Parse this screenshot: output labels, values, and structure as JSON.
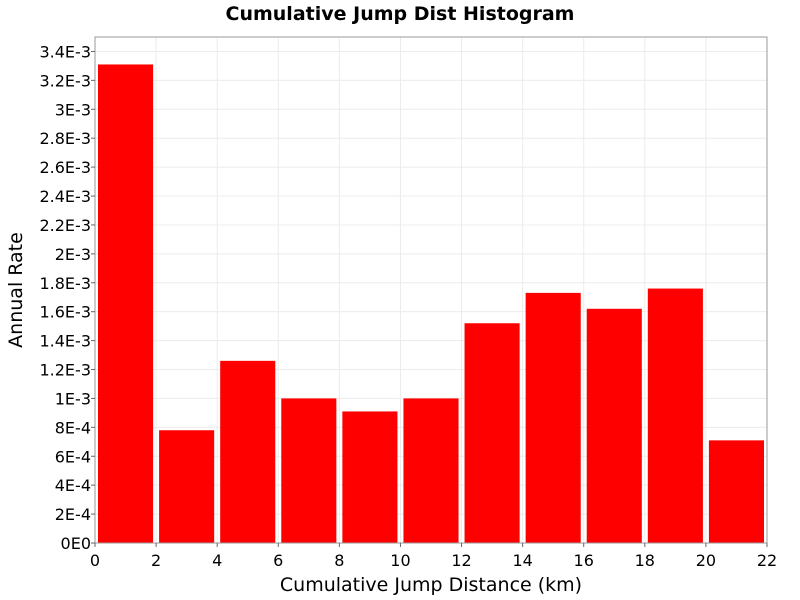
{
  "chart_data": {
    "type": "bar",
    "title": "Cumulative Jump Dist Histogram",
    "xlabel": "Cumulative Jump Distance (km)",
    "ylabel": "Annual Rate",
    "xlim": [
      0,
      22
    ],
    "ylim": [
      0,
      0.0035
    ],
    "x_ticks": [
      0,
      2,
      4,
      6,
      8,
      10,
      12,
      14,
      16,
      18,
      20,
      22
    ],
    "x_tick_labels": [
      "0",
      "2",
      "4",
      "6",
      "8",
      "10",
      "12",
      "14",
      "16",
      "18",
      "20",
      "22"
    ],
    "y_ticks": [
      0,
      0.0002,
      0.0004,
      0.0006,
      0.0008,
      0.001,
      0.0012,
      0.0014,
      0.0016,
      0.0018,
      0.002,
      0.0022,
      0.0024,
      0.0026,
      0.0028,
      0.003,
      0.0032,
      0.0034
    ],
    "y_tick_labels": [
      "0E0",
      "2E-4",
      "4E-4",
      "6E-4",
      "8E-4",
      "1E-3",
      "1.2E-3",
      "1.4E-3",
      "1.6E-3",
      "1.8E-3",
      "2E-3",
      "2.2E-3",
      "2.4E-3",
      "2.6E-3",
      "2.8E-3",
      "3E-3",
      "3.2E-3",
      "3.4E-3"
    ],
    "grid": true,
    "bar_color": "#ff0000",
    "bins": [
      {
        "x_start": 0,
        "x_end": 2,
        "value": 0.00331
      },
      {
        "x_start": 2,
        "x_end": 4,
        "value": 0.00078
      },
      {
        "x_start": 4,
        "x_end": 6,
        "value": 0.00126
      },
      {
        "x_start": 6,
        "x_end": 8,
        "value": 0.001
      },
      {
        "x_start": 8,
        "x_end": 10,
        "value": 0.00091
      },
      {
        "x_start": 10,
        "x_end": 12,
        "value": 0.001
      },
      {
        "x_start": 12,
        "x_end": 14,
        "value": 0.00152
      },
      {
        "x_start": 14,
        "x_end": 16,
        "value": 0.00173
      },
      {
        "x_start": 16,
        "x_end": 18,
        "value": 0.00162
      },
      {
        "x_start": 18,
        "x_end": 20,
        "value": 0.00176
      },
      {
        "x_start": 20,
        "x_end": 22,
        "value": 0.00071
      }
    ]
  }
}
